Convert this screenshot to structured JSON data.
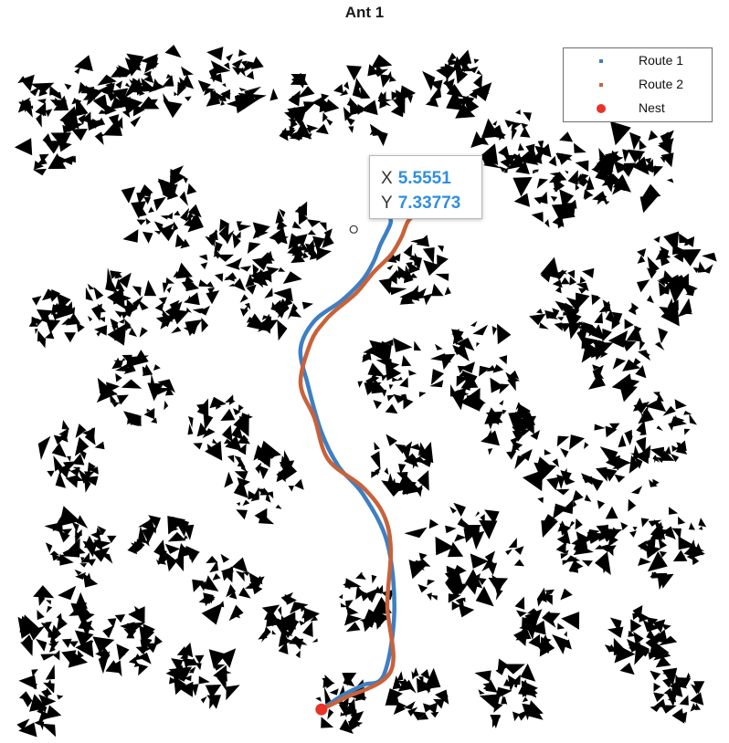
{
  "chart_data": {
    "type": "line",
    "title": "Ant 1",
    "xlabel": "",
    "ylabel": "",
    "xlim": [
      0,
      10
    ],
    "ylim": [
      0,
      10
    ],
    "grid": false,
    "legend_position": "top-right",
    "series": [
      {
        "name": "Route 1",
        "color": "#3d7fc4",
        "x": [
          4.3,
          4.6,
          4.9,
          5.2,
          5.35,
          5.25,
          4.9,
          4.55,
          4.3,
          4.1,
          4.0,
          4.2,
          4.6,
          4.9,
          5.05,
          5.15,
          5.25,
          5.3,
          5.25,
          5.15,
          5.35,
          5.55,
          5.7,
          5.8
        ],
        "y": [
          0.3,
          0.5,
          0.65,
          0.8,
          1.7,
          2.7,
          3.4,
          3.8,
          4.3,
          5.0,
          5.5,
          5.9,
          6.2,
          6.5,
          6.75,
          7.0,
          7.2,
          7.34,
          7.5,
          7.7,
          7.85,
          8.0,
          8.1,
          8.2
        ]
      },
      {
        "name": "Route 2",
        "color": "#c8623a",
        "x": [
          4.3,
          4.6,
          5.3,
          5.25,
          5.3,
          5.2,
          4.9,
          4.4,
          4.2,
          4.0,
          4.15,
          4.35,
          4.5,
          4.8,
          5.05,
          5.3,
          5.45,
          5.55,
          5.7,
          5.75,
          5.75,
          5.7,
          5.55
        ],
        "y": [
          0.3,
          0.45,
          0.85,
          1.8,
          2.6,
          3.1,
          3.5,
          3.9,
          4.5,
          5.0,
          5.6,
          5.9,
          6.05,
          6.3,
          6.6,
          6.85,
          7.1,
          7.34,
          7.5,
          7.75,
          7.95,
          8.1,
          8.25
        ]
      }
    ],
    "nest": {
      "name": "Nest",
      "x": 4.3,
      "y": 0.3,
      "color": "#e8332a"
    },
    "datatip": {
      "x_label": "X",
      "x_value": "5.5551",
      "y_label": "Y",
      "y_value": "7.33773"
    }
  }
}
